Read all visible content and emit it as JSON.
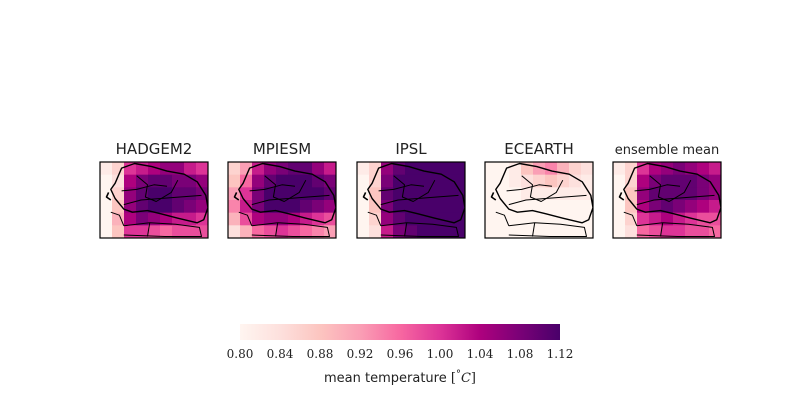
{
  "chart_data": {
    "type": "heatmap",
    "colormap": [
      "#fff5f0",
      "#fde0dd",
      "#fcc5c0",
      "#fa9fb5",
      "#f768a1",
      "#dd3497",
      "#ae017e",
      "#7a0177",
      "#49006a"
    ],
    "panels": [
      {
        "title": "HADGEM2",
        "grid": [
          [
            0.82,
            0.86,
            1.0,
            1.02,
            1.04,
            1.06,
            1.06,
            1.02,
            1.0
          ],
          [
            0.8,
            0.84,
            1.04,
            1.08,
            1.1,
            1.1,
            1.08,
            1.08,
            1.06
          ],
          [
            0.8,
            0.86,
            1.06,
            1.1,
            1.12,
            1.12,
            1.1,
            1.1,
            1.08
          ],
          [
            0.8,
            0.88,
            1.06,
            1.1,
            1.12,
            1.12,
            1.1,
            1.08,
            1.06
          ],
          [
            0.8,
            0.9,
            1.04,
            1.08,
            1.06,
            1.04,
            1.02,
            1.02,
            1.0
          ],
          [
            0.8,
            0.88,
            1.0,
            1.0,
            0.98,
            0.96,
            0.98,
            0.98,
            0.98
          ]
        ]
      },
      {
        "title": "MPIESM",
        "grid": [
          [
            0.86,
            0.92,
            1.02,
            1.06,
            1.08,
            1.1,
            1.1,
            1.06,
            1.02
          ],
          [
            0.88,
            0.96,
            1.06,
            1.1,
            1.12,
            1.12,
            1.12,
            1.1,
            1.08
          ],
          [
            0.92,
            1.0,
            1.08,
            1.12,
            1.12,
            1.12,
            1.12,
            1.12,
            1.1
          ],
          [
            0.94,
            1.02,
            1.08,
            1.12,
            1.12,
            1.12,
            1.1,
            1.08,
            1.06
          ],
          [
            0.9,
            0.98,
            1.04,
            1.06,
            1.06,
            1.04,
            1.02,
            1.0,
            0.98
          ],
          [
            0.84,
            0.9,
            0.96,
            0.98,
            1.0,
            0.98,
            0.96,
            0.94,
            0.92
          ]
        ]
      },
      {
        "title": "IPSL",
        "grid": [
          [
            0.82,
            0.86,
            1.06,
            1.1,
            1.12,
            1.12,
            1.12,
            1.12,
            1.12
          ],
          [
            0.8,
            0.86,
            1.08,
            1.12,
            1.12,
            1.12,
            1.12,
            1.12,
            1.12
          ],
          [
            0.8,
            0.88,
            1.1,
            1.12,
            1.12,
            1.12,
            1.12,
            1.12,
            1.12
          ],
          [
            0.8,
            0.88,
            1.08,
            1.12,
            1.12,
            1.12,
            1.12,
            1.12,
            1.12
          ],
          [
            0.8,
            0.86,
            1.06,
            1.1,
            1.12,
            1.12,
            1.12,
            1.12,
            1.12
          ],
          [
            0.8,
            0.84,
            1.02,
            1.08,
            1.1,
            1.12,
            1.12,
            1.12,
            1.12
          ]
        ]
      },
      {
        "title": "ECEARTH",
        "grid": [
          [
            0.8,
            0.8,
            0.82,
            0.88,
            0.92,
            0.94,
            0.9,
            0.86,
            0.84
          ],
          [
            0.8,
            0.8,
            0.82,
            0.84,
            0.86,
            0.88,
            0.86,
            0.84,
            0.82
          ],
          [
            0.8,
            0.8,
            0.8,
            0.82,
            0.82,
            0.82,
            0.82,
            0.82,
            0.82
          ],
          [
            0.8,
            0.8,
            0.8,
            0.8,
            0.8,
            0.8,
            0.8,
            0.8,
            0.8
          ],
          [
            0.8,
            0.8,
            0.8,
            0.8,
            0.8,
            0.8,
            0.8,
            0.8,
            0.8
          ],
          [
            0.8,
            0.8,
            0.8,
            0.8,
            0.8,
            0.8,
            0.8,
            0.8,
            0.8
          ]
        ]
      },
      {
        "title": "ensemble mean",
        "grid": [
          [
            0.82,
            0.86,
            1.0,
            1.04,
            1.06,
            1.08,
            1.06,
            1.04,
            1.02
          ],
          [
            0.8,
            0.86,
            1.04,
            1.08,
            1.1,
            1.1,
            1.1,
            1.08,
            1.06
          ],
          [
            0.8,
            0.88,
            1.06,
            1.1,
            1.1,
            1.1,
            1.1,
            1.08,
            1.06
          ],
          [
            0.8,
            0.88,
            1.04,
            1.08,
            1.1,
            1.08,
            1.06,
            1.04,
            1.02
          ],
          [
            0.8,
            0.86,
            1.0,
            1.02,
            1.04,
            1.02,
            1.0,
            0.98,
            0.98
          ],
          [
            0.8,
            0.84,
            0.96,
            0.98,
            1.0,
            1.0,
            0.98,
            0.98,
            0.96
          ]
        ]
      }
    ],
    "colorbar": {
      "label": "mean temperature [°C]",
      "label_prefix": "mean temperature",
      "label_unit_open": "[",
      "label_unit_deg": "°",
      "label_unit_c": "C",
      "label_unit_close": "]",
      "range": [
        0.8,
        1.12
      ],
      "ticks": [
        "0.80",
        "0.84",
        "0.88",
        "0.92",
        "0.96",
        "1.00",
        "1.04",
        "1.08",
        "1.12"
      ],
      "orientation": "horizontal",
      "placement": "bottom"
    }
  }
}
